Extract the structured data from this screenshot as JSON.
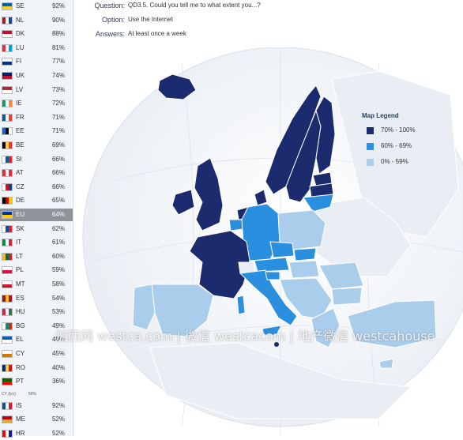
{
  "header": {
    "question_label": "Question:",
    "question_value": "QD3.5. Could you tell me to what extent you...?",
    "option_label": "Option:",
    "option_value": "Use the Internet",
    "answers_label": "Answers:",
    "answers_value": "At least once a week"
  },
  "countries": [
    {
      "code": "SE",
      "value": "92%",
      "flag": [
        "#0b5fa5",
        "#f6d32d"
      ]
    },
    {
      "code": "NL",
      "value": "90%",
      "flag": [
        "#ae1c28",
        "#ffffff",
        "#21468b"
      ]
    },
    {
      "code": "DK",
      "value": "88%",
      "flag": [
        "#c8102e",
        "#ffffff"
      ]
    },
    {
      "code": "LU",
      "value": "81%",
      "flag": [
        "#ed2939",
        "#ffffff",
        "#00a1de"
      ]
    },
    {
      "code": "FI",
      "value": "77%",
      "flag": [
        "#ffffff",
        "#003580"
      ]
    },
    {
      "code": "UK",
      "value": "74%",
      "flag": [
        "#012169",
        "#c8102e"
      ]
    },
    {
      "code": "LV",
      "value": "73%",
      "flag": [
        "#9e3039",
        "#ffffff"
      ]
    },
    {
      "code": "IE",
      "value": "72%",
      "flag": [
        "#169b62",
        "#ffffff",
        "#ff883e"
      ]
    },
    {
      "code": "FR",
      "value": "71%",
      "flag": [
        "#0055a4",
        "#ffffff",
        "#ef4135"
      ]
    },
    {
      "code": "EE",
      "value": "71%",
      "flag": [
        "#0072ce",
        "#000000",
        "#ffffff"
      ]
    },
    {
      "code": "BE",
      "value": "69%",
      "flag": [
        "#000000",
        "#fdda24",
        "#ef3340"
      ]
    },
    {
      "code": "SI",
      "value": "66%",
      "flag": [
        "#ffffff",
        "#005da4",
        "#ed1c24"
      ]
    },
    {
      "code": "AT",
      "value": "66%",
      "flag": [
        "#ed2939",
        "#ffffff",
        "#ed2939"
      ]
    },
    {
      "code": "CZ",
      "value": "66%",
      "flag": [
        "#ffffff",
        "#d7141a",
        "#11457e"
      ]
    },
    {
      "code": "DE",
      "value": "65%",
      "flag": [
        "#000000",
        "#dd0000",
        "#ffce00"
      ]
    },
    {
      "code": "EU",
      "value": "64%",
      "flag": [
        "#003399",
        "#ffcc00"
      ],
      "active": true
    },
    {
      "code": "SK",
      "value": "62%",
      "flag": [
        "#ffffff",
        "#0b4ea2",
        "#ee1c25"
      ]
    },
    {
      "code": "IT",
      "value": "61%",
      "flag": [
        "#009246",
        "#ffffff",
        "#ce2b37"
      ]
    },
    {
      "code": "LT",
      "value": "60%",
      "flag": [
        "#fdb913",
        "#006a44",
        "#c1272d"
      ]
    },
    {
      "code": "PL",
      "value": "59%",
      "flag": [
        "#ffffff",
        "#dc143c"
      ]
    },
    {
      "code": "MT",
      "value": "58%",
      "flag": [
        "#ffffff",
        "#cf142b"
      ]
    },
    {
      "code": "ES",
      "value": "54%",
      "flag": [
        "#aa151b",
        "#f1bf00",
        "#aa151b"
      ]
    },
    {
      "code": "HU",
      "value": "53%",
      "flag": [
        "#cd2a3e",
        "#ffffff",
        "#436f4d"
      ]
    },
    {
      "code": "BG",
      "value": "49%",
      "flag": [
        "#ffffff",
        "#00966e",
        "#d62612"
      ]
    },
    {
      "code": "EL",
      "value": "48%",
      "flag": [
        "#0d5eaf",
        "#ffffff"
      ]
    },
    {
      "code": "CY",
      "value": "45%",
      "flag": [
        "#ffffff",
        "#d57800"
      ]
    },
    {
      "code": "RO",
      "value": "40%",
      "flag": [
        "#002b7f",
        "#fcd116",
        "#ce1126"
      ]
    },
    {
      "code": "PT",
      "value": "36%",
      "flag": [
        "#006600",
        "#ff0000"
      ]
    }
  ],
  "mini_row": {
    "code": "CY (tcc)",
    "value": "50%"
  },
  "extra_countries": [
    {
      "code": "IS",
      "value": "92%",
      "flag": [
        "#02529c",
        "#ffffff",
        "#dc1e35"
      ]
    },
    {
      "code": "ME",
      "value": "52%",
      "flag": [
        "#c40308",
        "#d3ae3b"
      ]
    },
    {
      "code": "HR",
      "value": "52%",
      "flag": [
        "#ff0000",
        "#ffffff",
        "#171796"
      ]
    }
  ],
  "legend": {
    "title": "Map Legend",
    "items": [
      {
        "label": "70% - 100%",
        "color": "#1c2a6e"
      },
      {
        "label": "60% - 69%",
        "color": "#2b8fe0"
      },
      {
        "label": "0% - 59%",
        "color": "#a9cdea"
      }
    ]
  },
  "map_colors": {
    "dark": "#1c2a6e",
    "mid": "#2b8fe0",
    "light": "#a9cdea",
    "nonmember": "#e9eef4",
    "sea": "#f4f7fa"
  },
  "watermark": "加西网 westca.com | 微信 westcacom | 地产微信 westcahouse"
}
